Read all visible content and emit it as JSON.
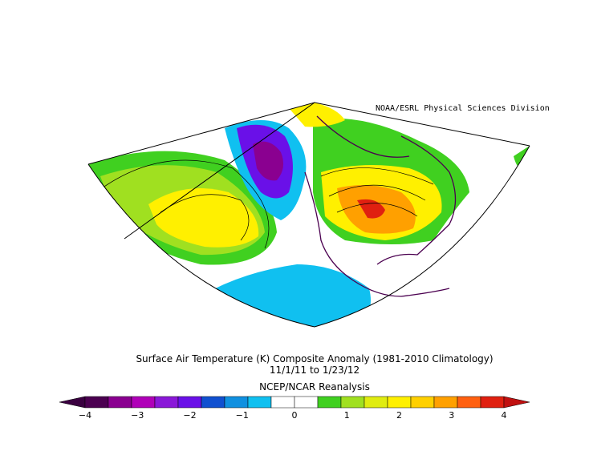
{
  "credit": "NOAA/ESRL Physical Sciences Division",
  "title": "Surface Air Temperature (K) Composite Anomaly (1981-2010 Climatology)",
  "date_range": "11/1/11  to 1/23/12",
  "source": "NCEP/NCAR Reanalysis",
  "colorbar": {
    "ticks": [
      "-4",
      "-3",
      "-2",
      "-1",
      "0",
      "1",
      "2",
      "3",
      "4"
    ],
    "colors": [
      "#4b0050",
      "#8a0090",
      "#b000b8",
      "#8a18d8",
      "#6a10e8",
      "#1050d0",
      "#1090e0",
      "#10c0f0",
      "#ffffff",
      "#ffffff",
      "#40d020",
      "#a0e020",
      "#e0ec10",
      "#fff000",
      "#ffd000",
      "#ffa000",
      "#ff6010",
      "#e02010"
    ],
    "low_color": "#3a0040",
    "high_color": "#c01010"
  }
}
